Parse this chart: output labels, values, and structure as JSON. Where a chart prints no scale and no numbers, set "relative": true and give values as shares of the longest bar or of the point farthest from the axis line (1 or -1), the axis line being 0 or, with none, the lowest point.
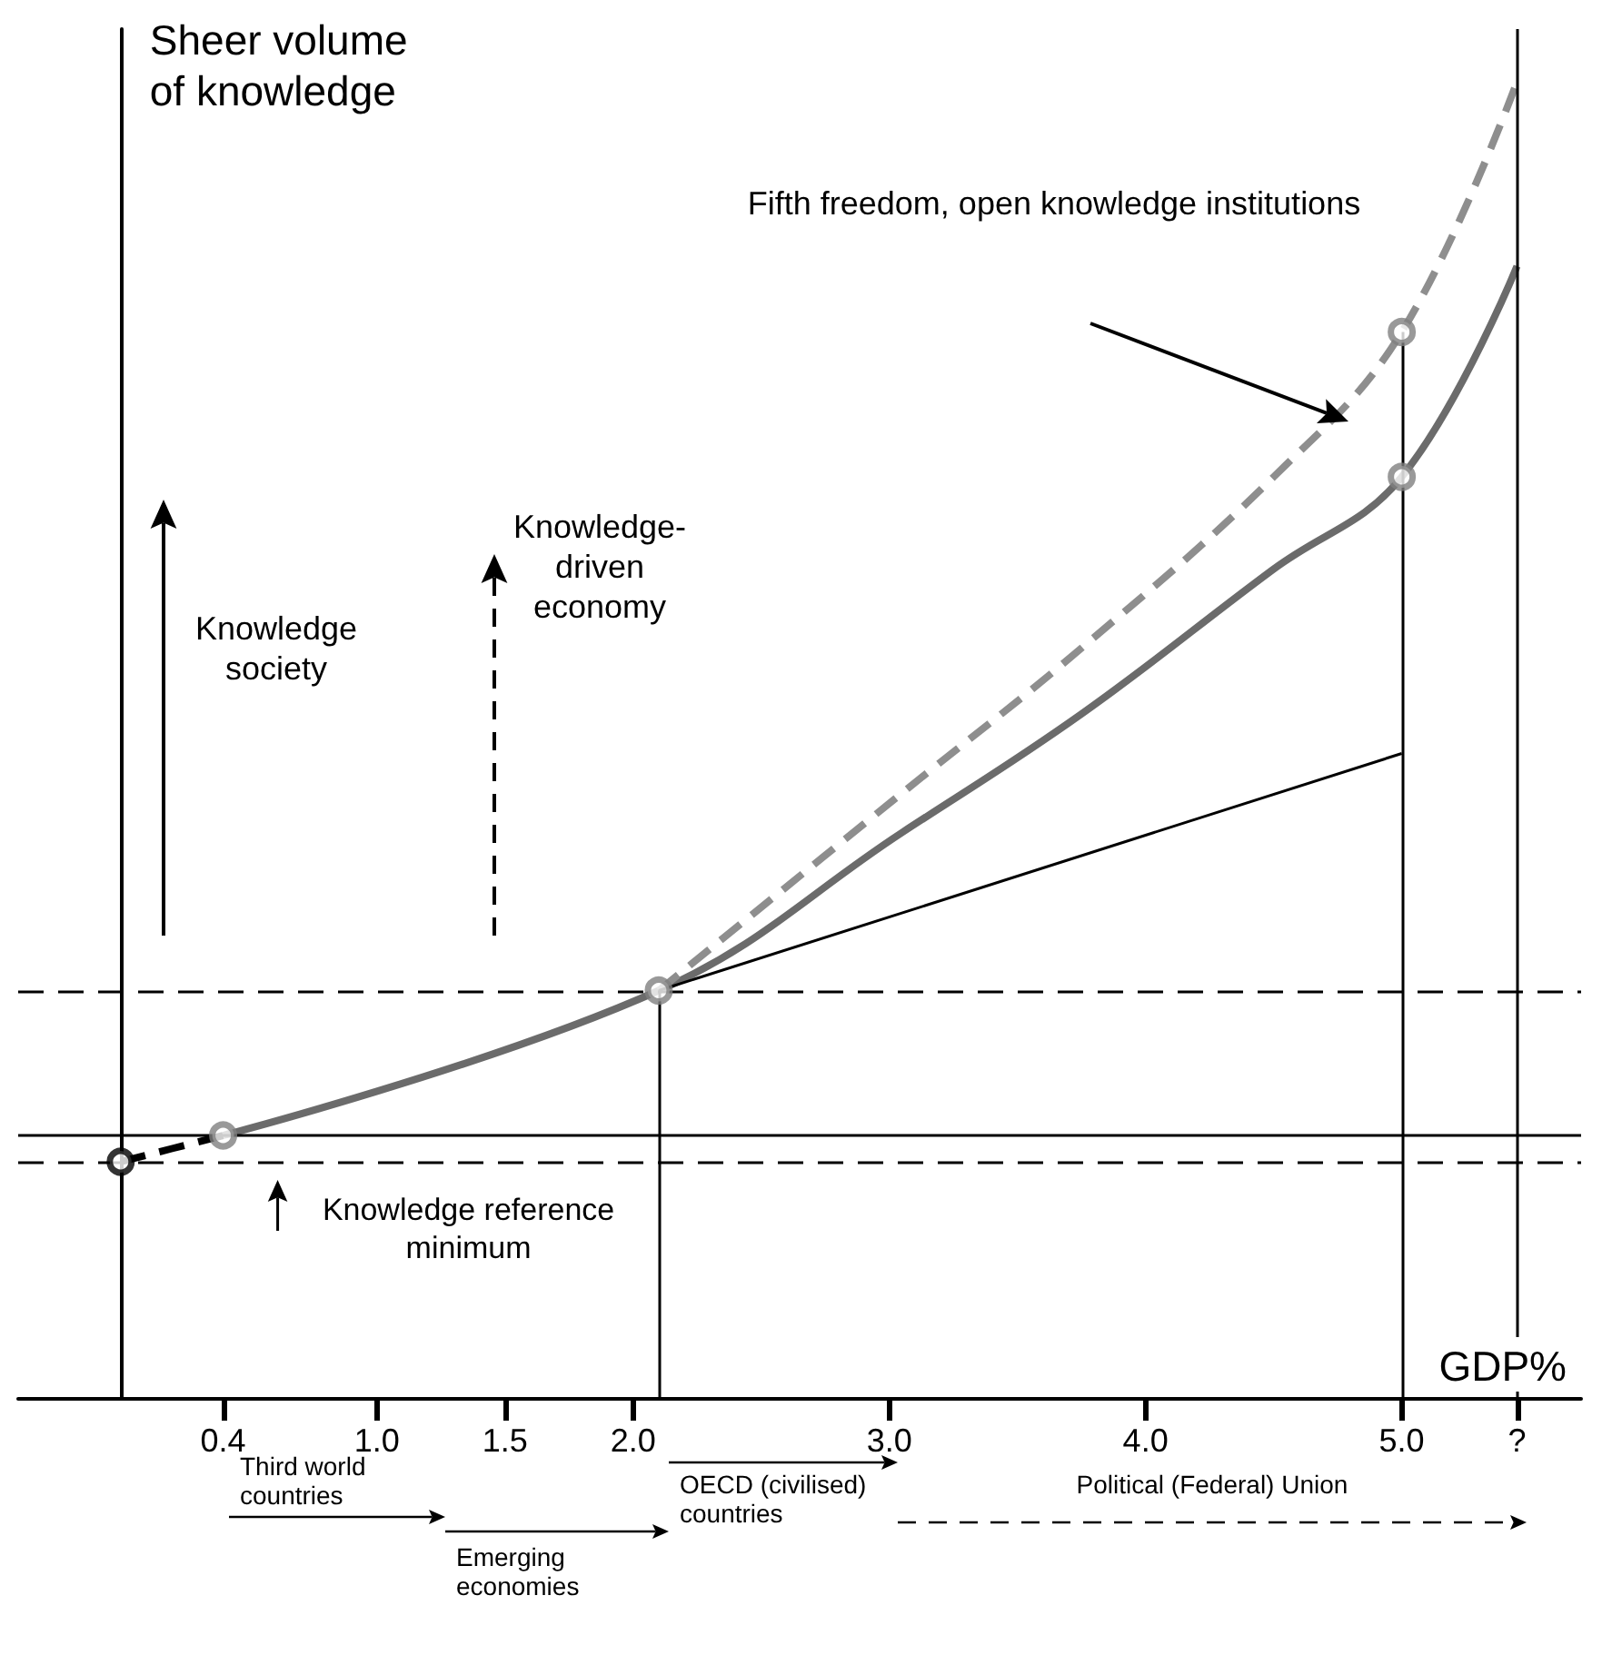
{
  "chart_data": {
    "type": "line",
    "relative": true,
    "xlabel": "GDP%",
    "ylabel": "Sheer volume of knowledge",
    "xlim": [
      -0.4,
      5.7
    ],
    "xticks": [
      0.4,
      {
        "value": 1,
        "label": "1.0"
      },
      1.5,
      {
        "value": 2,
        "label": "2.0"
      },
      {
        "value": 3,
        "label": "3.0"
      },
      {
        "value": 4,
        "label": "4.0"
      },
      {
        "value": 5,
        "label": "5.0"
      },
      {
        "value": 5.45,
        "label": "?"
      }
    ],
    "grid": false,
    "series": [
      {
        "color": "#6b6b6b",
        "line_style": "solid",
        "marker": "none",
        "x": [
          0.4,
          2.1,
          3.05,
          3.75,
          4.5,
          5.0,
          5.45
        ],
        "values": [
          0.2,
          0.31,
          0.43,
          0.52,
          0.63,
          0.7,
          0.86
        ]
      },
      {
        "color": "#8e8e8e",
        "line_style": "dashed",
        "marker": "none",
        "x": [
          2.1,
          3.05,
          3.75,
          4.5,
          5.0,
          5.45
        ],
        "values": [
          0.31,
          0.46,
          0.57,
          0.7,
          0.81,
          1
        ]
      },
      {
        "color": "#000000",
        "line_style": "solid",
        "marker": "none",
        "x": [
          2.1,
          5.0
        ],
        "values": [
          0.31,
          0.49
        ]
      },
      {
        "color": "#000000",
        "line_style": "dashed",
        "marker": "none",
        "x": [
          0,
          0.4
        ],
        "values": [
          0.18,
          0.2
        ]
      },
      {
        "type": "scatter",
        "marker": "circle",
        "colors": [
          "#000000",
          "#808080",
          "#808080",
          "#808080",
          "#808080"
        ],
        "x": [
          0,
          0.4,
          2.1,
          5.0,
          5.0
        ],
        "values": [
          0.18,
          0.2,
          0.31,
          0.7,
          0.81
        ]
      }
    ],
    "ref_lines": [
      {
        "axis": "y",
        "value": 0.18,
        "label": "Knowledge reference minimum",
        "line_style": "dashed"
      },
      {
        "axis": "y",
        "value": 0.2,
        "line_style": "solid"
      },
      {
        "axis": "y",
        "value": 0.31,
        "line_style": "dashed"
      },
      {
        "axis": "x",
        "value": 2.1,
        "line_style": "solid"
      },
      {
        "axis": "x",
        "value": 5.0,
        "line_style": "solid"
      },
      {
        "axis": "x",
        "value": 5.45,
        "line_style": "solid"
      }
    ],
    "annotations": [
      "Knowledge society",
      "Knowledge-driven economy",
      "Fifth freedom, open knowledge institutions",
      "Third world countries",
      "Emerging economies",
      "OECD (civilised) countries",
      "Political (Federal) Union"
    ]
  }
}
